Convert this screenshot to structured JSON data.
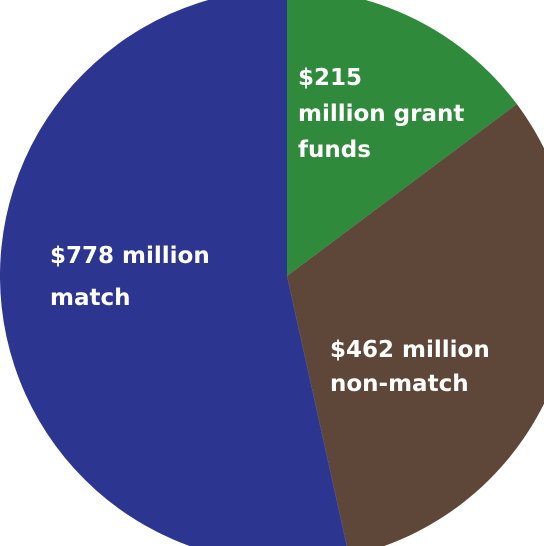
{
  "chart_data": {
    "type": "pie",
    "title": "",
    "unit": "$ million",
    "start_angle_deg": 90,
    "direction": "clockwise",
    "slices": [
      {
        "value": 215,
        "color": "#2f8a3c",
        "label_lines": [
          "$215",
          "million grant",
          "funds"
        ]
      },
      {
        "value": 462,
        "color": "#5e4739",
        "label_lines": [
          "$462 million",
          "non-match"
        ]
      },
      {
        "value": 778,
        "color": "#2c3590",
        "label_lines": [
          "$778 million",
          "match"
        ]
      }
    ]
  }
}
